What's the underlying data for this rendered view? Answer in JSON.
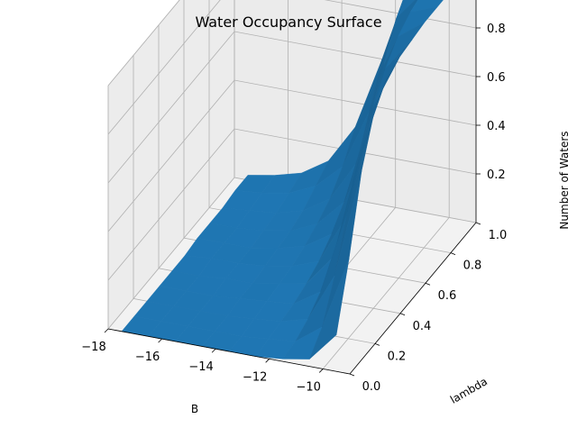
{
  "chart_data": {
    "type": "surface",
    "title": "Water Occupancy Surface",
    "xlabel": "B",
    "ylabel": "lambda",
    "zlabel": "Number of Waters",
    "xlim": [
      -18,
      -9
    ],
    "ylim": [
      0,
      1
    ],
    "zlim": [
      0,
      1
    ],
    "xticks": [
      -18,
      -16,
      -14,
      -12,
      -10
    ],
    "xtick_labels": [
      "−18",
      "−16",
      "−14",
      "−12",
      "−10"
    ],
    "yticks": [
      0.0,
      0.2,
      0.4,
      0.6,
      0.8,
      1.0
    ],
    "ytick_labels": [
      "0.0",
      "0.2",
      "0.4",
      "0.6",
      "0.8",
      "1.0"
    ],
    "zticks": [
      0.2,
      0.4,
      0.6,
      0.8,
      1.0
    ],
    "ztick_labels": [
      "0.2",
      "0.4",
      "0.6",
      "0.8",
      "1.0"
    ],
    "grid": true,
    "surface_color": "#1f77b4",
    "B": [
      -17.5,
      -16.5,
      -15.5,
      -14.5,
      -13.5,
      -12.5,
      -11.5,
      -10.5,
      -9.5
    ],
    "lambda": [
      0.0,
      0.1,
      0.2,
      0.3,
      0.4,
      0.5,
      0.6,
      0.7,
      0.8,
      0.9,
      1.0
    ],
    "z": [
      [
        0.0,
        0.0,
        0.0,
        0.0,
        0.0,
        0.0,
        0.01,
        0.01,
        0.01,
        0.02,
        0.02
      ],
      [
        0.0,
        0.0,
        0.0,
        0.0,
        0.0,
        0.01,
        0.01,
        0.01,
        0.02,
        0.03,
        0.04
      ],
      [
        0.0,
        0.0,
        0.0,
        0.0,
        0.01,
        0.01,
        0.01,
        0.02,
        0.03,
        0.05,
        0.07
      ],
      [
        0.0,
        0.0,
        0.0,
        0.01,
        0.01,
        0.02,
        0.03,
        0.04,
        0.06,
        0.1,
        0.14
      ],
      [
        0.0,
        0.0,
        0.01,
        0.02,
        0.03,
        0.04,
        0.06,
        0.09,
        0.13,
        0.2,
        0.3
      ],
      [
        0.0,
        0.01,
        0.02,
        0.03,
        0.05,
        0.08,
        0.13,
        0.2,
        0.3,
        0.45,
        0.6
      ],
      [
        0.01,
        0.02,
        0.05,
        0.1,
        0.18,
        0.28,
        0.42,
        0.58,
        0.72,
        0.85,
        0.93
      ],
      [
        0.03,
        0.1,
        0.25,
        0.45,
        0.62,
        0.75,
        0.85,
        0.92,
        0.96,
        0.98,
        0.99
      ],
      [
        0.15,
        0.4,
        0.7,
        0.88,
        0.96,
        0.98,
        0.99,
        1.0,
        1.0,
        1.0,
        1.0
      ]
    ]
  }
}
